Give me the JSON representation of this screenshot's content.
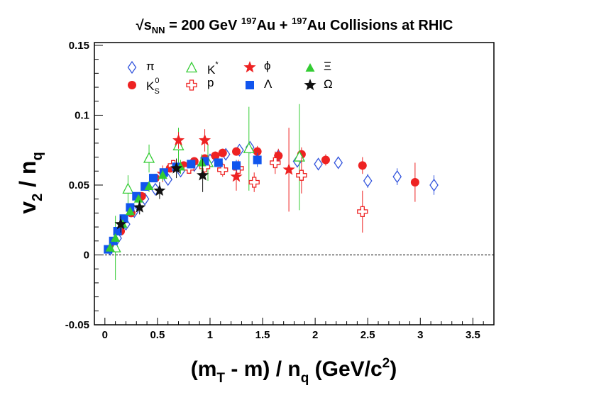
{
  "chart_data": {
    "type": "scatter",
    "title": {
      "prefix": "√",
      "s": "s",
      "nn": "NN",
      "energy": " = 200 GeV ",
      "mass_number": "197",
      "element": "Au",
      "joiner": " + ",
      "rest": " Collisions at RHIC"
    },
    "xlabel": {
      "part1": "(m",
      "sub1": "T",
      "part2": " - m) / n",
      "sub2": "q",
      "part3": " (GeV/c",
      "sup": "2",
      "part4": ")"
    },
    "ylabel": {
      "main": "v",
      "sub1": "2",
      "mid": " / n",
      "sub2": "q"
    },
    "xlim": [
      -0.1,
      3.7
    ],
    "ylim": [
      -0.05,
      0.152
    ],
    "xticks": [
      {
        "v": 0,
        "label": "0"
      },
      {
        "v": 0.5,
        "label": "0.5"
      },
      {
        "v": 1,
        "label": "1"
      },
      {
        "v": 1.5,
        "label": "1.5"
      },
      {
        "v": 2,
        "label": "2"
      },
      {
        "v": 2.5,
        "label": "2.5"
      },
      {
        "v": 3,
        "label": "3"
      },
      {
        "v": 3.5,
        "label": "3.5"
      }
    ],
    "yticks": [
      {
        "v": -0.05,
        "label": "-0.05"
      },
      {
        "v": 0,
        "label": "0"
      },
      {
        "v": 0.05,
        "label": "0.05"
      },
      {
        "v": 0.1,
        "label": "0.1"
      },
      {
        "v": 0.15,
        "label": "0.15"
      }
    ],
    "reference_line": 0,
    "legend_position": "top-left",
    "series": [
      {
        "name": "pi",
        "label": "π",
        "marker": "open-diamond",
        "color": "#3355dd",
        "points": [
          {
            "x": 0.05,
            "y": 0.004,
            "e": 0.002
          },
          {
            "x": 0.12,
            "y": 0.012,
            "e": 0.002
          },
          {
            "x": 0.2,
            "y": 0.022,
            "e": 0.002
          },
          {
            "x": 0.28,
            "y": 0.031,
            "e": 0.002
          },
          {
            "x": 0.38,
            "y": 0.04,
            "e": 0.002
          },
          {
            "x": 0.48,
            "y": 0.047,
            "e": 0.002
          },
          {
            "x": 0.6,
            "y": 0.054,
            "e": 0.002
          },
          {
            "x": 0.72,
            "y": 0.06,
            "e": 0.002
          },
          {
            "x": 0.85,
            "y": 0.064,
            "e": 0.002
          },
          {
            "x": 1.0,
            "y": 0.068,
            "e": 0.002
          },
          {
            "x": 1.15,
            "y": 0.072,
            "e": 0.003
          },
          {
            "x": 1.28,
            "y": 0.075,
            "e": 0.003
          },
          {
            "x": 1.38,
            "y": 0.077,
            "e": 0.004
          },
          {
            "x": 1.65,
            "y": 0.071,
            "e": 0.004
          },
          {
            "x": 1.83,
            "y": 0.067,
            "e": 0.004
          },
          {
            "x": 2.03,
            "y": 0.065,
            "e": 0.004
          },
          {
            "x": 2.22,
            "y": 0.066,
            "e": 0.004
          },
          {
            "x": 2.5,
            "y": 0.053,
            "e": 0.005
          },
          {
            "x": 2.78,
            "y": 0.056,
            "e": 0.006
          },
          {
            "x": 3.13,
            "y": 0.05,
            "e": 0.007
          }
        ]
      },
      {
        "name": "K0S",
        "label": "K",
        "label_sub": "S",
        "label_sup": "0",
        "marker": "filled-circle",
        "color": "#ee2222",
        "points": [
          {
            "x": 0.08,
            "y": 0.007,
            "e": 0.002
          },
          {
            "x": 0.15,
            "y": 0.017,
            "e": 0.002
          },
          {
            "x": 0.25,
            "y": 0.03,
            "e": 0.002
          },
          {
            "x": 0.35,
            "y": 0.042,
            "e": 0.002
          },
          {
            "x": 0.48,
            "y": 0.055,
            "e": 0.002
          },
          {
            "x": 0.62,
            "y": 0.062,
            "e": 0.002
          },
          {
            "x": 0.75,
            "y": 0.064,
            "e": 0.002
          },
          {
            "x": 0.85,
            "y": 0.067,
            "e": 0.002
          },
          {
            "x": 0.95,
            "y": 0.069,
            "e": 0.002
          },
          {
            "x": 1.05,
            "y": 0.071,
            "e": 0.003
          },
          {
            "x": 1.12,
            "y": 0.073,
            "e": 0.003
          },
          {
            "x": 1.25,
            "y": 0.074,
            "e": 0.003
          },
          {
            "x": 1.45,
            "y": 0.074,
            "e": 0.004
          },
          {
            "x": 1.65,
            "y": 0.071,
            "e": 0.005
          },
          {
            "x": 1.87,
            "y": 0.072,
            "e": 0.005
          },
          {
            "x": 2.1,
            "y": 0.068,
            "e": 0.004
          },
          {
            "x": 2.45,
            "y": 0.064,
            "e": 0.006
          },
          {
            "x": 2.95,
            "y": 0.052,
            "e": 0.014
          }
        ]
      },
      {
        "name": "Kstar",
        "label": "K",
        "label_sup": "*",
        "marker": "open-triangle",
        "color": "#33cc33",
        "points": [
          {
            "x": 0.1,
            "y": 0.005,
            "e": 0.023
          },
          {
            "x": 0.22,
            "y": 0.047,
            "e": 0.01
          },
          {
            "x": 0.42,
            "y": 0.069,
            "e": 0.01
          },
          {
            "x": 0.7,
            "y": 0.078,
            "e": 0.013
          },
          {
            "x": 0.98,
            "y": 0.066,
            "e": 0.013
          },
          {
            "x": 1.37,
            "y": 0.076,
            "e": 0.03
          },
          {
            "x": 1.85,
            "y": 0.07,
            "e": 0.038
          }
        ]
      },
      {
        "name": "p",
        "label": "p",
        "marker": "open-cross",
        "color": "#ee2222",
        "points": [
          {
            "x": 0.65,
            "y": 0.064,
            "e": 0.004
          },
          {
            "x": 0.8,
            "y": 0.062,
            "e": 0.004
          },
          {
            "x": 0.95,
            "y": 0.063,
            "e": 0.005
          },
          {
            "x": 1.12,
            "y": 0.061,
            "e": 0.005
          },
          {
            "x": 1.27,
            "y": 0.062,
            "e": 0.006
          },
          {
            "x": 1.42,
            "y": 0.052,
            "e": 0.007
          },
          {
            "x": 1.62,
            "y": 0.066,
            "e": 0.008
          },
          {
            "x": 1.87,
            "y": 0.057,
            "e": 0.013
          },
          {
            "x": 2.45,
            "y": 0.031,
            "e": 0.015
          }
        ]
      },
      {
        "name": "phi",
        "label": "ϕ",
        "marker": "filled-star",
        "color": "#ee2222",
        "points": [
          {
            "x": 0.55,
            "y": 0.058,
            "e": 0.006
          },
          {
            "x": 0.7,
            "y": 0.082,
            "e": 0.006
          },
          {
            "x": 0.95,
            "y": 0.082,
            "e": 0.008
          },
          {
            "x": 1.25,
            "y": 0.056,
            "e": 0.01
          },
          {
            "x": 1.75,
            "y": 0.061,
            "e": 0.03
          }
        ]
      },
      {
        "name": "Lambda",
        "label": "Λ",
        "marker": "filled-square",
        "color": "#1155ee",
        "points": [
          {
            "x": 0.03,
            "y": 0.004,
            "e": 0.001
          },
          {
            "x": 0.08,
            "y": 0.01,
            "e": 0.001
          },
          {
            "x": 0.12,
            "y": 0.017,
            "e": 0.001
          },
          {
            "x": 0.18,
            "y": 0.026,
            "e": 0.001
          },
          {
            "x": 0.24,
            "y": 0.034,
            "e": 0.001
          },
          {
            "x": 0.3,
            "y": 0.042,
            "e": 0.002
          },
          {
            "x": 0.38,
            "y": 0.049,
            "e": 0.002
          },
          {
            "x": 0.46,
            "y": 0.055,
            "e": 0.002
          },
          {
            "x": 0.56,
            "y": 0.059,
            "e": 0.002
          },
          {
            "x": 0.68,
            "y": 0.063,
            "e": 0.002
          },
          {
            "x": 0.82,
            "y": 0.065,
            "e": 0.002
          },
          {
            "x": 0.95,
            "y": 0.067,
            "e": 0.003
          },
          {
            "x": 1.08,
            "y": 0.066,
            "e": 0.003
          },
          {
            "x": 1.25,
            "y": 0.064,
            "e": 0.004
          },
          {
            "x": 1.45,
            "y": 0.068,
            "e": 0.005
          }
        ]
      },
      {
        "name": "Xi",
        "label": "Ξ",
        "marker": "filled-triangle",
        "color": "#33cc33",
        "points": [
          {
            "x": 0.05,
            "y": 0.005,
            "e": 0.003
          },
          {
            "x": 0.1,
            "y": 0.012,
            "e": 0.003
          },
          {
            "x": 0.17,
            "y": 0.022,
            "e": 0.003
          },
          {
            "x": 0.24,
            "y": 0.031,
            "e": 0.003
          },
          {
            "x": 0.32,
            "y": 0.04,
            "e": 0.003
          },
          {
            "x": 0.42,
            "y": 0.049,
            "e": 0.004
          },
          {
            "x": 0.55,
            "y": 0.057,
            "e": 0.004
          },
          {
            "x": 0.72,
            "y": 0.063,
            "e": 0.005
          },
          {
            "x": 0.92,
            "y": 0.066,
            "e": 0.006
          }
        ]
      },
      {
        "name": "Omega",
        "label": "Ω",
        "marker": "filled-star",
        "color": "#111111",
        "points": [
          {
            "x": 0.15,
            "y": 0.022,
            "e": 0.006
          },
          {
            "x": 0.33,
            "y": 0.034,
            "e": 0.005
          },
          {
            "x": 0.52,
            "y": 0.046,
            "e": 0.006
          },
          {
            "x": 0.68,
            "y": 0.062,
            "e": 0.007
          },
          {
            "x": 0.93,
            "y": 0.057,
            "e": 0.012
          }
        ]
      }
    ]
  }
}
